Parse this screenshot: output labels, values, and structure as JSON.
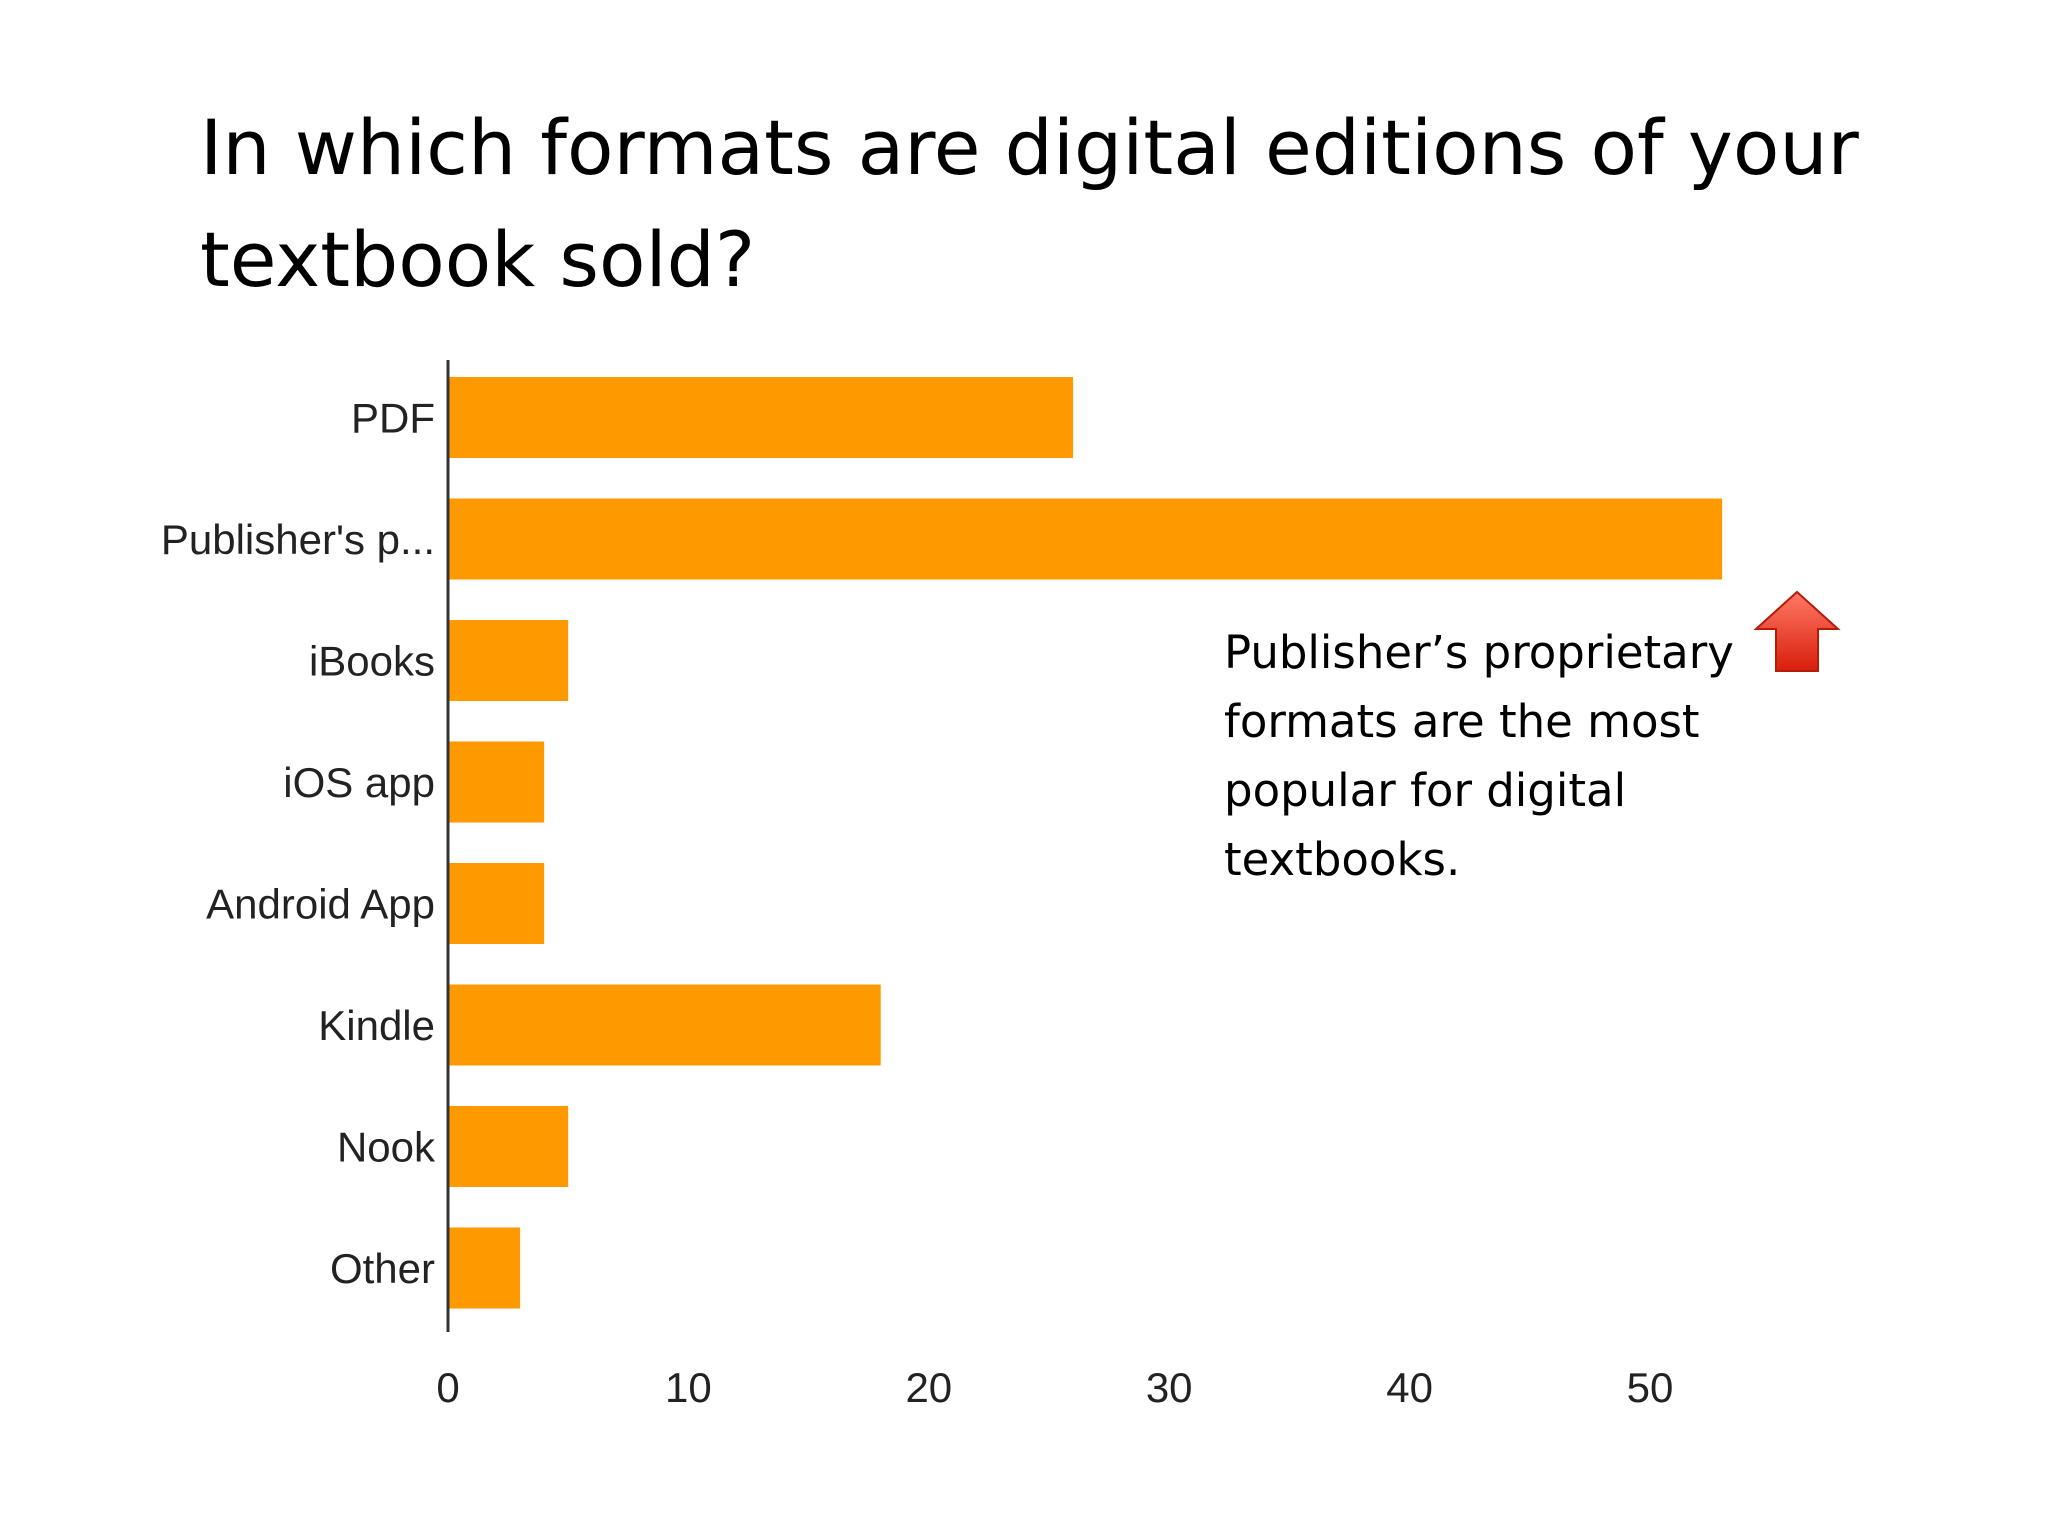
{
  "slide": {
    "title": "In which formats are digital editions of your textbook sold?",
    "annotation": "Publisher’s proprietary\nformats are the most\npopular for digital\ntextbooks."
  },
  "colors": {
    "bar": "#FF9900",
    "axis": "#333333",
    "arrow_top": "#FF7A66",
    "arrow_bottom": "#D81E0B"
  },
  "icons": {
    "annotation_arrow": "red-up-arrow-icon"
  },
  "chart_data": {
    "type": "bar",
    "orientation": "horizontal",
    "categories": [
      "PDF",
      "Publisher's p...",
      "iBooks",
      "iOS app",
      "Android App",
      "Kindle",
      "Nook",
      "Other"
    ],
    "values": [
      26,
      53,
      5,
      4,
      4,
      18,
      5,
      3
    ],
    "xlim": [
      0,
      53
    ],
    "xticks": [
      0,
      10,
      20,
      30,
      40,
      50
    ],
    "grid": false,
    "legend": "none"
  }
}
